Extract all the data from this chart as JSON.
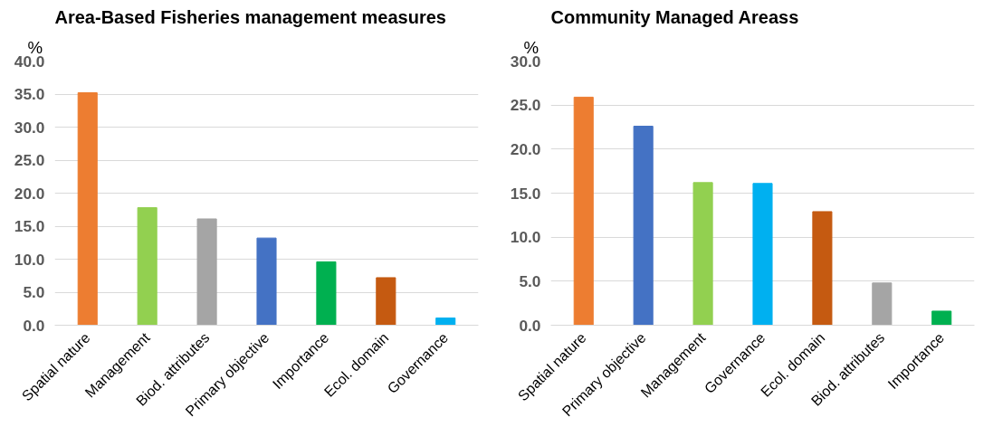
{
  "chart_data": [
    {
      "type": "bar",
      "title": "Area-Based Fisheries management measures",
      "ylabel": "%",
      "categories": [
        "Spatial nature",
        "Management",
        "Biod. attributes",
        "Primary objective",
        "Importance",
        "Ecol. domain",
        "Governance"
      ],
      "values": [
        35.2,
        17.8,
        16.1,
        13.2,
        9.6,
        7.2,
        1.1
      ],
      "colors": [
        "#ed7d31",
        "#92d050",
        "#a5a5a5",
        "#4472c4",
        "#00b050",
        "#c55a11",
        "#00b0f0"
      ],
      "ylim": [
        0,
        40
      ],
      "yticks": [
        {
          "value": 0,
          "label": "0.0"
        },
        {
          "value": 5,
          "label": "5.0"
        },
        {
          "value": 10,
          "label": "10.0"
        },
        {
          "value": 15,
          "label": "15.0"
        },
        {
          "value": 20,
          "label": "20.0"
        },
        {
          "value": 25,
          "label": "25.0"
        },
        {
          "value": 30,
          "label": "30.0"
        },
        {
          "value": 35,
          "label": "35.0"
        },
        {
          "value": 40,
          "label": "40.0"
        }
      ],
      "grid": "y"
    },
    {
      "type": "bar",
      "title": "Community Managed Areass",
      "ylabel": "%",
      "categories": [
        "Spatial nature",
        "Primary objective",
        "Management",
        "Governance",
        "Ecol. domain",
        "Biod. attributes",
        "Importance"
      ],
      "values": [
        25.9,
        22.6,
        16.2,
        16.1,
        12.9,
        4.8,
        1.6
      ],
      "colors": [
        "#ed7d31",
        "#4472c4",
        "#92d050",
        "#00b0f0",
        "#c55a11",
        "#a5a5a5",
        "#00b050"
      ],
      "ylim": [
        0,
        30
      ],
      "yticks": [
        {
          "value": 0,
          "label": "0.0"
        },
        {
          "value": 5,
          "label": "5.0"
        },
        {
          "value": 10,
          "label": "10.0"
        },
        {
          "value": 15,
          "label": "15.0"
        },
        {
          "value": 20,
          "label": "20.0"
        },
        {
          "value": 25,
          "label": "25.0"
        },
        {
          "value": 30,
          "label": "30.0"
        }
      ],
      "grid": "y"
    }
  ]
}
